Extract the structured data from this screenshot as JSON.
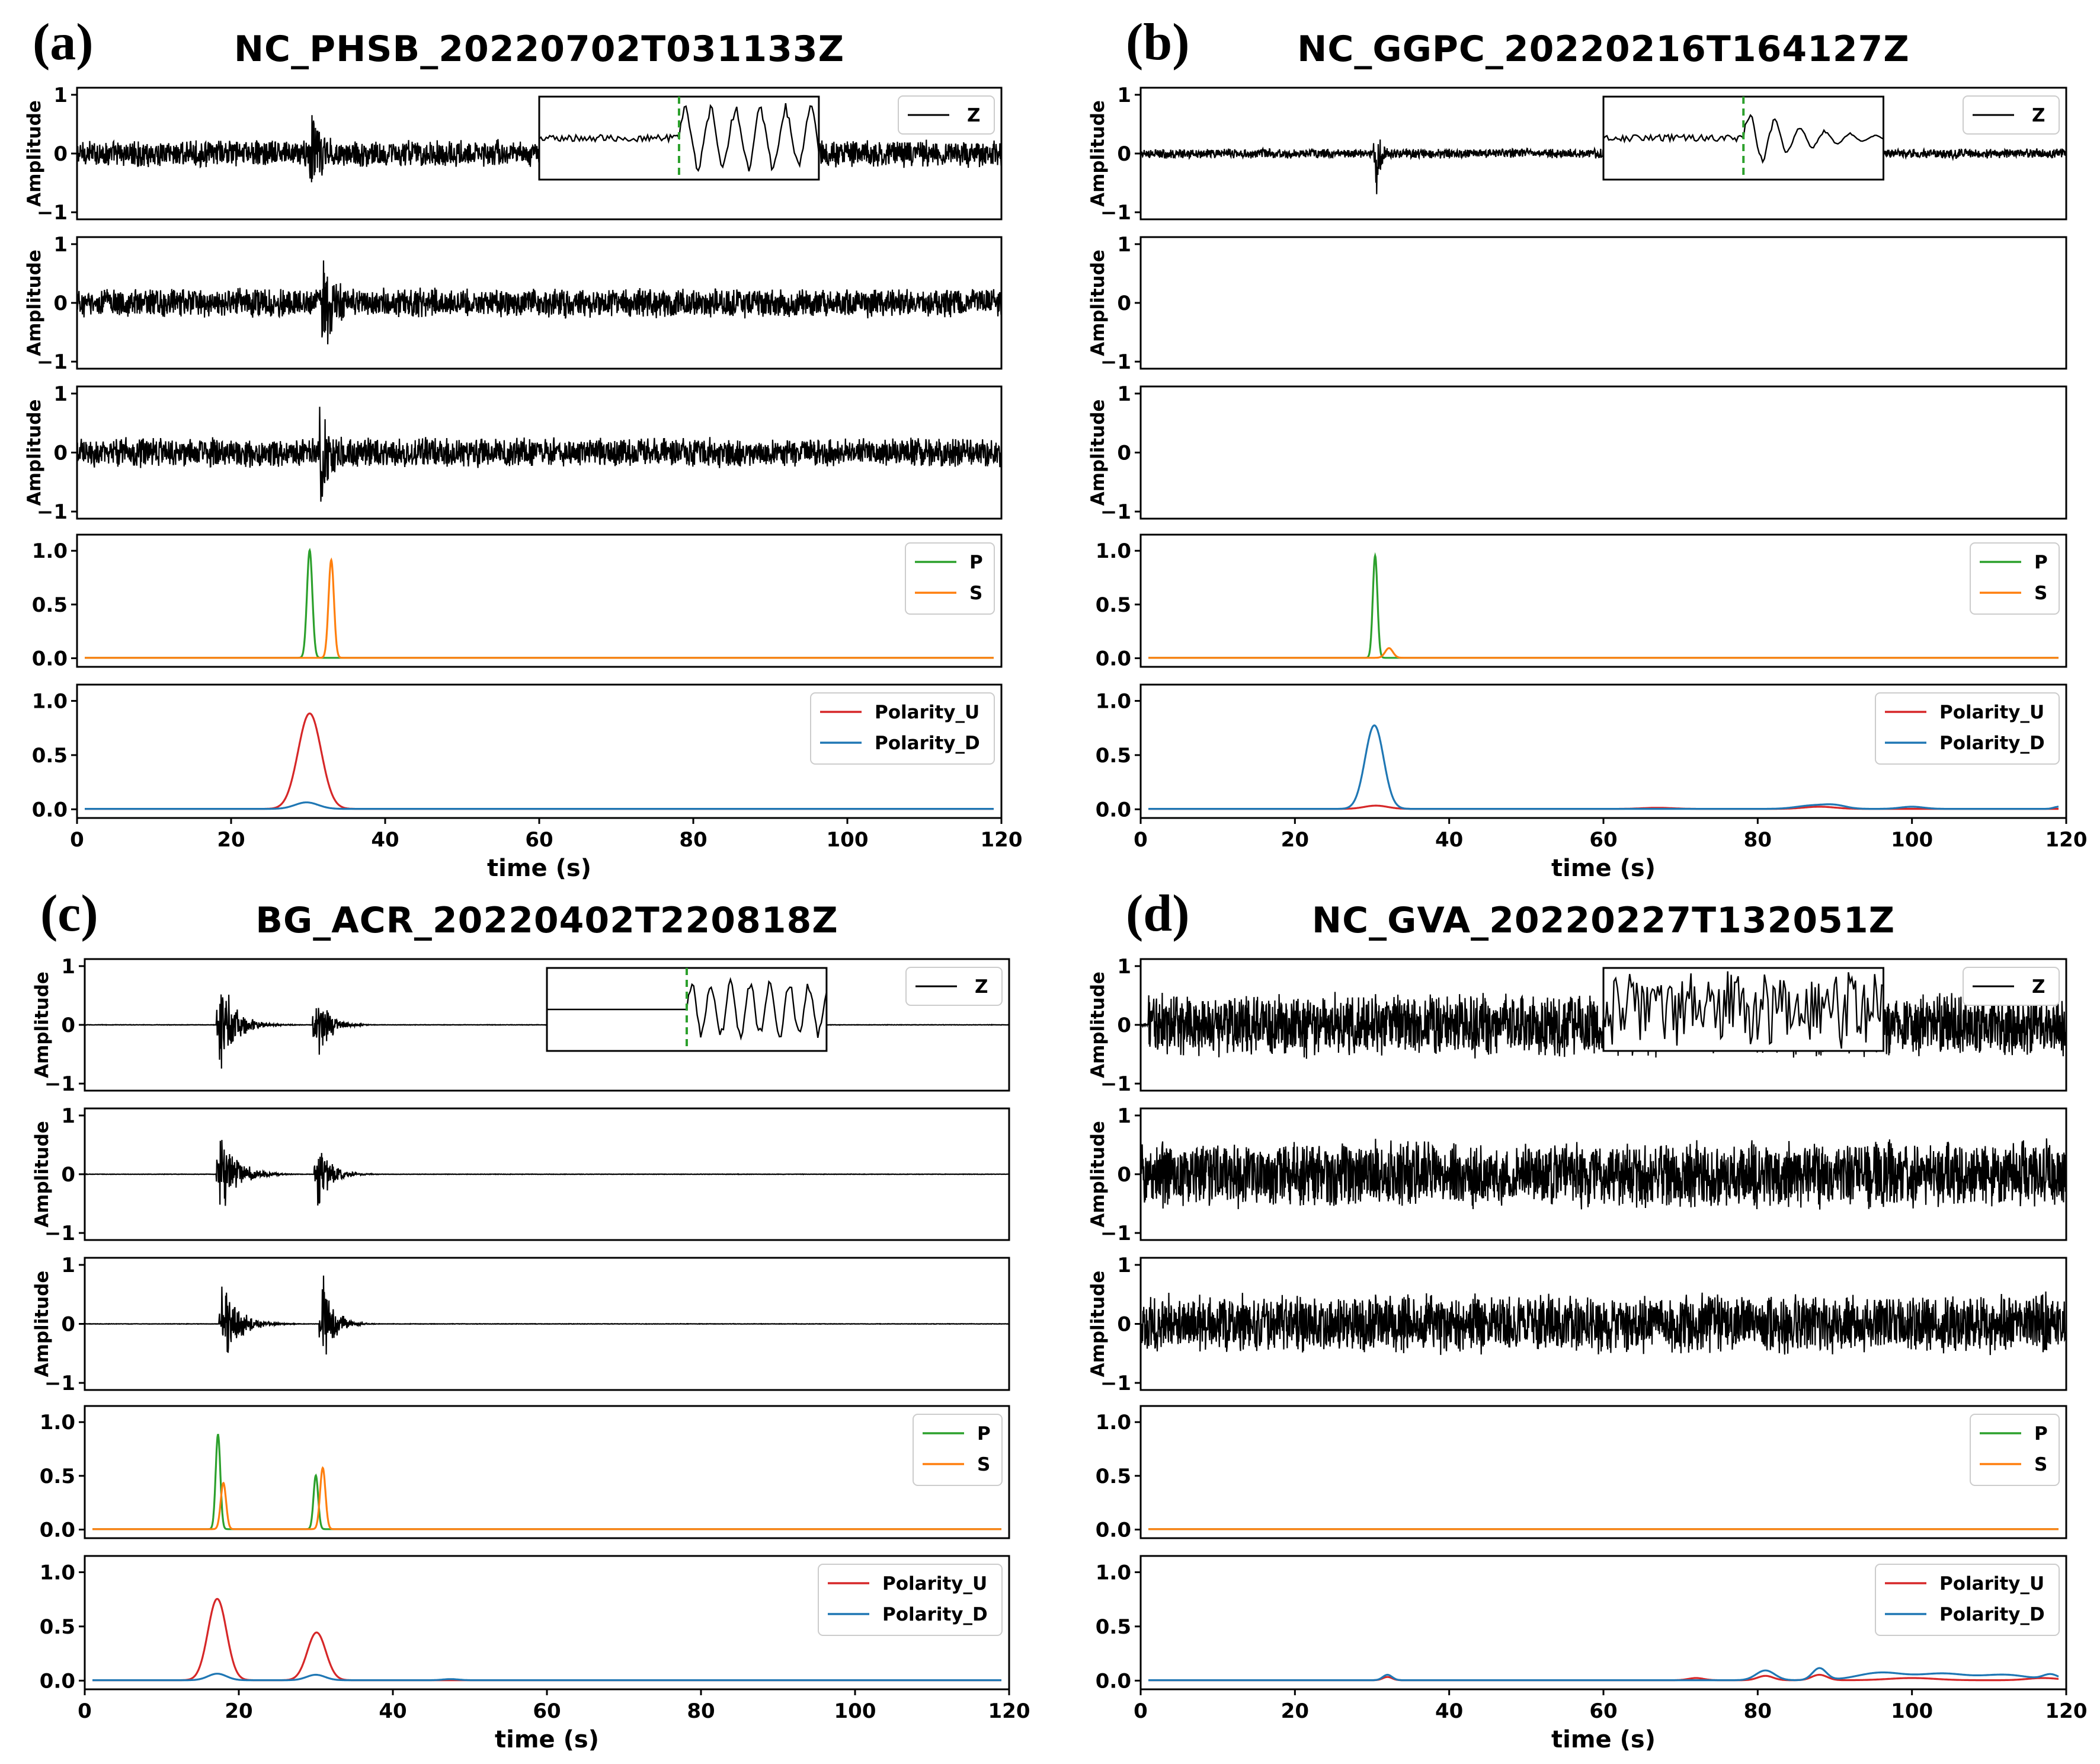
{
  "colors": {
    "wave": "#000000",
    "P": "#2ca02c",
    "S": "#ff7f0e",
    "Polarity_U": "#d62728",
    "Polarity_D": "#1f77b4",
    "pick": "#2ca02c"
  },
  "labels": {
    "ylabel": "Amplitude",
    "xlabel": "time (s)"
  },
  "chart_data": [
    {
      "type": "line",
      "tag": "(a)",
      "title": "NC_PHSB_20220702T031133Z",
      "xlim": [
        0,
        120
      ],
      "xticks": [
        "0",
        "20",
        "40",
        "60",
        "80",
        "100",
        "120"
      ],
      "wave_yticks": [
        "1",
        "0",
        "−1"
      ],
      "prob_yticks": [
        "1.0",
        "0.5",
        "0.0"
      ],
      "waveforms": [
        {
          "legend": "Z",
          "noise": 0.25,
          "quiet_start": false,
          "bursts": [
            {
              "t": 30.2,
              "amp": 1.0,
              "decay": 2.2
            }
          ],
          "inset": "onset"
        },
        {
          "legend": "",
          "noise": 0.27,
          "quiet_start": false,
          "bursts": [
            {
              "t": 31.8,
              "amp": 0.95,
              "decay": 2.8
            }
          ],
          "inset": null
        },
        {
          "legend": "",
          "noise": 0.27,
          "quiet_start": false,
          "bursts": [
            {
              "t": 31.5,
              "amp": 0.95,
              "decay": 2.8
            }
          ],
          "inset": null
        }
      ],
      "phase": {
        "series": [
          {
            "name": "P",
            "peaks": [
              {
                "t": 30.2,
                "h": 1.0,
                "w": 0.35
              }
            ]
          },
          {
            "name": "S",
            "peaks": [
              {
                "t": 33.0,
                "h": 0.91,
                "w": 0.35
              }
            ]
          }
        ],
        "legend": [
          "P",
          "S"
        ]
      },
      "polarity": {
        "series": [
          {
            "name": "Polarity_U",
            "peaks": [
              {
                "t": 30.2,
                "h": 0.88,
                "w": 1.5
              }
            ]
          },
          {
            "name": "Polarity_D",
            "peaks": [
              {
                "t": 29.8,
                "h": 0.06,
                "w": 1.5
              }
            ]
          }
        ],
        "legend": [
          "Polarity_U",
          "Polarity_D"
        ]
      }
    },
    {
      "type": "line",
      "tag": "(b)",
      "title": "NC_GGPC_20220216T164127Z",
      "xlim": [
        0,
        120
      ],
      "xticks": [
        "0",
        "20",
        "40",
        "60",
        "80",
        "100",
        "120"
      ],
      "wave_yticks": [
        "1",
        "0",
        "−1"
      ],
      "prob_yticks": [
        "1.0",
        "0.5",
        "0.0"
      ],
      "waveforms": [
        {
          "legend": "Z",
          "noise": 0.09,
          "quiet_start": false,
          "bursts": [
            {
              "t": 30.5,
              "amp": 1.0,
              "decay": 0.7
            }
          ],
          "inset": "onset"
        },
        {
          "legend": "",
          "noise": 0.0,
          "quiet_start": false,
          "bursts": [],
          "inset": null
        },
        {
          "legend": "",
          "noise": 0.0,
          "quiet_start": false,
          "bursts": [],
          "inset": null
        }
      ],
      "phase": {
        "series": [
          {
            "name": "P",
            "peaks": [
              {
                "t": 30.4,
                "h": 0.95,
                "w": 0.3
              }
            ]
          },
          {
            "name": "S",
            "peaks": [
              {
                "t": 32.2,
                "h": 0.09,
                "w": 0.5
              }
            ]
          }
        ],
        "legend": [
          "P",
          "S"
        ]
      },
      "polarity": {
        "series": [
          {
            "name": "Polarity_U",
            "peaks": [
              {
                "t": 30.5,
                "h": 0.03,
                "w": 1.5
              },
              {
                "t": 67,
                "h": 0.01,
                "w": 2
              },
              {
                "t": 88,
                "h": 0.02,
                "w": 2
              }
            ]
          },
          {
            "name": "Polarity_D",
            "peaks": [
              {
                "t": 30.3,
                "h": 0.77,
                "w": 1.2
              },
              {
                "t": 87,
                "h": 0.03,
                "w": 2
              },
              {
                "t": 90,
                "h": 0.03,
                "w": 1.5
              },
              {
                "t": 100,
                "h": 0.02,
                "w": 1.5
              },
              {
                "t": 119,
                "h": 0.02,
                "w": 0.6
              }
            ]
          }
        ],
        "legend": [
          "Polarity_U",
          "Polarity_D"
        ]
      }
    },
    {
      "type": "line",
      "tag": "(c)",
      "title": "BG_ACR_20220402T220818Z",
      "xlim": [
        0,
        120
      ],
      "xticks": [
        "0",
        "20",
        "40",
        "60",
        "80",
        "100",
        "120"
      ],
      "wave_yticks": [
        "1",
        "0",
        "−1"
      ],
      "prob_yticks": [
        "1.0",
        "0.5",
        "0.0"
      ],
      "waveforms": [
        {
          "legend": "Z",
          "noise": 0.004,
          "quiet_start": false,
          "bursts": [
            {
              "t": 17.5,
              "amp": 1.0,
              "decay": 2.0
            },
            {
              "t": 30.0,
              "amp": 0.75,
              "decay": 1.6
            }
          ],
          "inset": "quiet"
        },
        {
          "legend": "",
          "noise": 0.004,
          "quiet_start": false,
          "bursts": [
            {
              "t": 17.5,
              "amp": 0.95,
              "decay": 2.0
            },
            {
              "t": 30.2,
              "amp": 0.7,
              "decay": 1.6
            }
          ],
          "inset": null
        },
        {
          "legend": "",
          "noise": 0.004,
          "quiet_start": false,
          "bursts": [
            {
              "t": 17.8,
              "amp": 0.9,
              "decay": 2.0
            },
            {
              "t": 30.8,
              "amp": 1.0,
              "decay": 1.4
            }
          ],
          "inset": null
        }
      ],
      "phase": {
        "series": [
          {
            "name": "P",
            "peaks": [
              {
                "t": 17.3,
                "h": 0.88,
                "w": 0.3
              },
              {
                "t": 30.0,
                "h": 0.5,
                "w": 0.3
              }
            ]
          },
          {
            "name": "S",
            "peaks": [
              {
                "t": 18.0,
                "h": 0.43,
                "w": 0.35
              },
              {
                "t": 30.9,
                "h": 0.57,
                "w": 0.35
              }
            ]
          }
        ],
        "legend": [
          "P",
          "S"
        ]
      },
      "polarity": {
        "series": [
          {
            "name": "Polarity_U",
            "peaks": [
              {
                "t": 17.2,
                "h": 0.75,
                "w": 1.2
              },
              {
                "t": 30.1,
                "h": 0.44,
                "w": 1.2
              }
            ]
          },
          {
            "name": "Polarity_D",
            "peaks": [
              {
                "t": 17.2,
                "h": 0.06,
                "w": 1.2
              },
              {
                "t": 30.0,
                "h": 0.05,
                "w": 1.2
              },
              {
                "t": 47.5,
                "h": 0.01,
                "w": 1
              }
            ]
          }
        ],
        "legend": [
          "Polarity_U",
          "Polarity_D"
        ]
      }
    },
    {
      "type": "line",
      "tag": "(d)",
      "title": "NC_GVA_20220227T132051Z",
      "xlim": [
        0,
        120
      ],
      "xticks": [
        "0",
        "20",
        "40",
        "60",
        "80",
        "100",
        "120"
      ],
      "wave_yticks": [
        "1",
        "0",
        "−1"
      ],
      "prob_yticks": [
        "1.0",
        "0.5",
        "0.0"
      ],
      "waveforms": [
        {
          "legend": "Z",
          "noise": 0.58,
          "quiet_start": true,
          "bursts": [],
          "inset": "noise"
        },
        {
          "legend": "",
          "noise": 0.62,
          "quiet_start": false,
          "bursts": [],
          "inset": null
        },
        {
          "legend": "",
          "noise": 0.55,
          "quiet_start": false,
          "bursts": [],
          "inset": null
        }
      ],
      "phase": {
        "series": [
          {
            "name": "P",
            "peaks": []
          },
          {
            "name": "S",
            "peaks": []
          }
        ],
        "legend": [
          "P",
          "S"
        ]
      },
      "polarity": {
        "series": [
          {
            "name": "Polarity_U",
            "peaks": [
              {
                "t": 32,
                "h": 0.03,
                "w": 0.6
              },
              {
                "t": 72,
                "h": 0.02,
                "w": 1
              },
              {
                "t": 81,
                "h": 0.04,
                "w": 1
              },
              {
                "t": 88,
                "h": 0.05,
                "w": 1
              },
              {
                "t": 100,
                "h": 0.02,
                "w": 3
              },
              {
                "t": 117,
                "h": 0.02,
                "w": 2
              }
            ]
          },
          {
            "name": "Polarity_D",
            "peaks": [
              {
                "t": 32,
                "h": 0.05,
                "w": 0.6
              },
              {
                "t": 81,
                "h": 0.09,
                "w": 1.2
              },
              {
                "t": 88,
                "h": 0.11,
                "w": 0.9
              },
              {
                "t": 96,
                "h": 0.07,
                "w": 3
              },
              {
                "t": 104,
                "h": 0.06,
                "w": 3
              },
              {
                "t": 112,
                "h": 0.05,
                "w": 3
              },
              {
                "t": 118,
                "h": 0.05,
                "w": 1
              }
            ]
          }
        ],
        "legend": [
          "Polarity_U",
          "Polarity_D"
        ]
      }
    }
  ]
}
